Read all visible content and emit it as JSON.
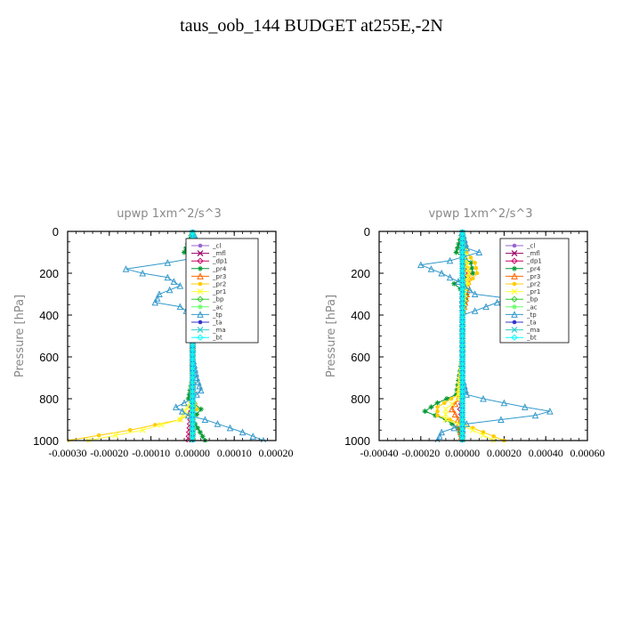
{
  "title": "taus_oob_144  BUDGET at255E,-2N",
  "chart_data": [
    {
      "type": "line",
      "title": "upwp   1xm^2/s^3",
      "ylabel": "Pressure [hPa]",
      "ylim": [
        1000,
        0
      ],
      "xlim": [
        -0.0003,
        0.0002
      ],
      "yticks": [
        0,
        200,
        400,
        600,
        800,
        1000
      ],
      "xtick_labels": [
        "-0.00030",
        "-0.00020",
        "-0.00010",
        "0.00000",
        "0.00010",
        "0.00020"
      ],
      "xtick_values": [
        -0.0003,
        -0.0002,
        -0.0001,
        0.0,
        0.0001,
        0.0002
      ],
      "legend_position": "top-right",
      "series": [
        {
          "name": "_cl",
          "color": "#9966cc",
          "y": [
            0,
            100,
            200,
            300,
            400,
            500,
            600,
            700,
            800,
            900,
            1000
          ],
          "x": [
            0,
            0,
            0,
            0,
            0,
            0,
            0,
            0,
            0,
            0,
            0
          ]
        },
        {
          "name": "_mfl",
          "color": "#990066",
          "y": [
            0,
            100,
            200,
            300,
            400,
            500,
            600,
            700,
            800,
            900,
            1000
          ],
          "x": [
            0,
            0,
            0,
            0,
            0,
            0,
            0,
            0,
            0,
            0,
            0
          ]
        },
        {
          "name": "_dp1",
          "color": "#cc0066",
          "y": [
            0,
            100,
            200,
            300,
            400,
            500,
            600,
            700,
            800,
            900,
            1000
          ],
          "x": [
            0,
            5e-06,
            5e-06,
            0,
            0,
            0,
            0,
            0,
            0,
            -5e-06,
            -1e-05
          ]
        },
        {
          "name": "_pr4",
          "color": "#009933",
          "y": [
            0,
            100,
            150,
            200,
            250,
            300,
            350,
            400,
            500,
            700,
            800,
            850,
            900,
            1000
          ],
          "x": [
            0,
            -2e-05,
            1e-05,
            2e-05,
            -1e-05,
            1e-05,
            2e-05,
            5e-06,
            0,
            0,
            -1e-05,
            2e-05,
            0,
            3e-05
          ]
        },
        {
          "name": "_pr3",
          "color": "#ff6600",
          "y": [
            0,
            100,
            150,
            200,
            250,
            300,
            400,
            600,
            800,
            900,
            1000
          ],
          "x": [
            0,
            5e-06,
            2e-05,
            2.5e-05,
            1e-05,
            0,
            0,
            0,
            0,
            0,
            0
          ]
        },
        {
          "name": "_pr2",
          "color": "#ffcc00",
          "y": [
            0,
            100,
            150,
            200,
            250,
            300,
            400,
            600,
            800,
            850,
            900,
            950,
            1000
          ],
          "x": [
            0,
            1e-05,
            3e-05,
            3.5e-05,
            2e-05,
            1e-05,
            0,
            0,
            0,
            1e-05,
            -3e-05,
            -0.00015,
            -0.0003
          ]
        },
        {
          "name": "_pr1",
          "color": "#ffff33",
          "y": [
            0,
            100,
            200,
            300,
            400,
            600,
            800,
            900,
            950,
            1000
          ],
          "x": [
            0,
            1e-05,
            2e-05,
            1e-05,
            0,
            0,
            0,
            -3e-05,
            -0.00012,
            -0.00025
          ]
        },
        {
          "name": "_bp",
          "color": "#33cc33",
          "y": [
            0,
            100,
            200,
            300,
            400,
            600,
            800,
            900,
            1000
          ],
          "x": [
            0,
            0,
            0,
            0,
            0,
            0,
            0,
            0,
            0
          ]
        },
        {
          "name": "_ac",
          "color": "#66ff66",
          "y": [
            0,
            100,
            200,
            300,
            400,
            600,
            800,
            900,
            1000
          ],
          "x": [
            0,
            0,
            0,
            0,
            0,
            0,
            0,
            0,
            0
          ]
        },
        {
          "name": "_tp",
          "color": "#3399cc",
          "y": [
            0,
            80,
            100,
            150,
            180,
            200,
            220,
            260,
            300,
            340,
            360,
            400,
            500,
            600,
            700,
            760,
            800,
            840,
            880,
            900,
            960,
            1000
          ],
          "x": [
            0,
            2e-05,
            8e-05,
            -6e-05,
            -0.00016,
            -0.00012,
            -6e-05,
            -3e-05,
            -8e-05,
            -9e-05,
            -3e-05,
            0,
            0,
            0,
            1e-05,
            2e-05,
            0,
            -4e-05,
            -1e-05,
            3e-05,
            0.00012,
            0.00017
          ]
        },
        {
          "name": "_ta",
          "color": "#3333cc",
          "y": [
            0,
            200,
            400,
            600,
            800,
            1000
          ],
          "x": [
            0,
            0,
            0,
            0,
            0,
            0
          ]
        },
        {
          "name": "_ma",
          "color": "#33cccc",
          "y": [
            0,
            200,
            400,
            600,
            800,
            1000
          ],
          "x": [
            0,
            0,
            0,
            0,
            0,
            0
          ]
        },
        {
          "name": "_bt",
          "color": "#00ffff",
          "y": [
            0,
            200,
            400,
            600,
            800,
            1000
          ],
          "x": [
            0,
            0,
            0,
            0,
            0,
            0
          ]
        }
      ]
    },
    {
      "type": "line",
      "title": "vpwp   1xm^2/s^3",
      "ylabel": "Pressure [hPa]",
      "ylim": [
        1000,
        0
      ],
      "xlim": [
        -0.0004,
        0.0006
      ],
      "yticks": [
        0,
        200,
        400,
        600,
        800,
        1000
      ],
      "xtick_labels": [
        "-0.00040",
        "-0.00020",
        "0.00000",
        "0.00020",
        "0.00040",
        "0.00060"
      ],
      "xtick_values": [
        -0.0004,
        -0.0002,
        0.0,
        0.0002,
        0.0004,
        0.0006
      ],
      "legend_position": "top-right",
      "series": [
        {
          "name": "_cl",
          "color": "#9966cc",
          "y": [
            0,
            200,
            400,
            600,
            800,
            1000
          ],
          "x": [
            0,
            0,
            0,
            0,
            0,
            0
          ]
        },
        {
          "name": "_mfl",
          "color": "#990066",
          "y": [
            0,
            200,
            400,
            600,
            800,
            1000
          ],
          "x": [
            0,
            0,
            0,
            0,
            0,
            0
          ]
        },
        {
          "name": "_dp1",
          "color": "#cc0066",
          "y": [
            0,
            100,
            200,
            300,
            400,
            600,
            800,
            850,
            900,
            1000
          ],
          "x": [
            0,
            0,
            1e-05,
            0,
            0,
            0,
            0,
            -1e-05,
            0,
            0
          ]
        },
        {
          "name": "_pr4",
          "color": "#009933",
          "y": [
            0,
            100,
            150,
            200,
            250,
            300,
            400,
            600,
            780,
            820,
            860,
            900,
            940,
            1000
          ],
          "x": [
            0,
            -3e-05,
            4e-05,
            5e-05,
            -4e-05,
            2e-05,
            0,
            0,
            -3e-05,
            -0.00012,
            -0.00018,
            -8e-05,
            -2e-05,
            0
          ]
        },
        {
          "name": "_pr3",
          "color": "#ff6600",
          "y": [
            0,
            100,
            200,
            300,
            400,
            600,
            800,
            850,
            900,
            1000
          ],
          "x": [
            0,
            0,
            3e-05,
            2e-05,
            0,
            0,
            -2e-05,
            -5e-05,
            -2e-05,
            0
          ]
        },
        {
          "name": "_pr2",
          "color": "#ffcc00",
          "y": [
            0,
            100,
            150,
            200,
            250,
            300,
            400,
            600,
            780,
            840,
            880,
            920,
            1000
          ],
          "x": [
            0,
            2e-05,
            6e-05,
            7e-05,
            3e-05,
            1e-05,
            0,
            0,
            -2e-05,
            -0.00012,
            -0.00012,
            0,
            0.0002
          ]
        },
        {
          "name": "_pr1",
          "color": "#ffff33",
          "y": [
            0,
            100,
            200,
            300,
            400,
            600,
            800,
            850,
            900,
            950,
            1000
          ],
          "x": [
            0,
            1e-05,
            3e-05,
            1e-05,
            0,
            0,
            -2e-05,
            -8e-05,
            -8e-05,
            5e-05,
            0.00015
          ]
        },
        {
          "name": "_bp",
          "color": "#33cc33",
          "y": [
            0,
            200,
            400,
            600,
            800,
            1000
          ],
          "x": [
            0,
            0,
            0,
            0,
            0,
            0
          ]
        },
        {
          "name": "_ac",
          "color": "#66ff66",
          "y": [
            0,
            200,
            400,
            600,
            800,
            1000
          ],
          "x": [
            0,
            0,
            0,
            0,
            0,
            0
          ]
        },
        {
          "name": "_tp",
          "color": "#3399cc",
          "y": [
            0,
            80,
            100,
            140,
            160,
            200,
            240,
            260,
            300,
            320,
            380,
            400,
            500,
            600,
            700,
            780,
            800,
            840,
            860,
            880,
            920,
            960,
            1000
          ],
          "x": [
            0,
            2e-05,
            8e-05,
            -6e-05,
            -0.0002,
            -0.0001,
            -2e-05,
            1e-05,
            6e-05,
            0.00022,
            6e-05,
            0,
            0,
            0,
            0,
            2e-05,
            0.0001,
            0.0003,
            0.00042,
            0.00035,
            2e-05,
            -0.0001,
            -0.00012
          ]
        },
        {
          "name": "_ta",
          "color": "#3333cc",
          "y": [
            0,
            200,
            400,
            600,
            800,
            1000
          ],
          "x": [
            0,
            0,
            0,
            0,
            0,
            0
          ]
        },
        {
          "name": "_ma",
          "color": "#33cccc",
          "y": [
            0,
            200,
            400,
            600,
            800,
            1000
          ],
          "x": [
            0,
            0,
            0,
            0,
            0,
            0
          ]
        },
        {
          "name": "_bt",
          "color": "#00ffff",
          "y": [
            0,
            200,
            400,
            600,
            800,
            1000
          ],
          "x": [
            0,
            0,
            0,
            0,
            0,
            0
          ]
        }
      ]
    }
  ]
}
